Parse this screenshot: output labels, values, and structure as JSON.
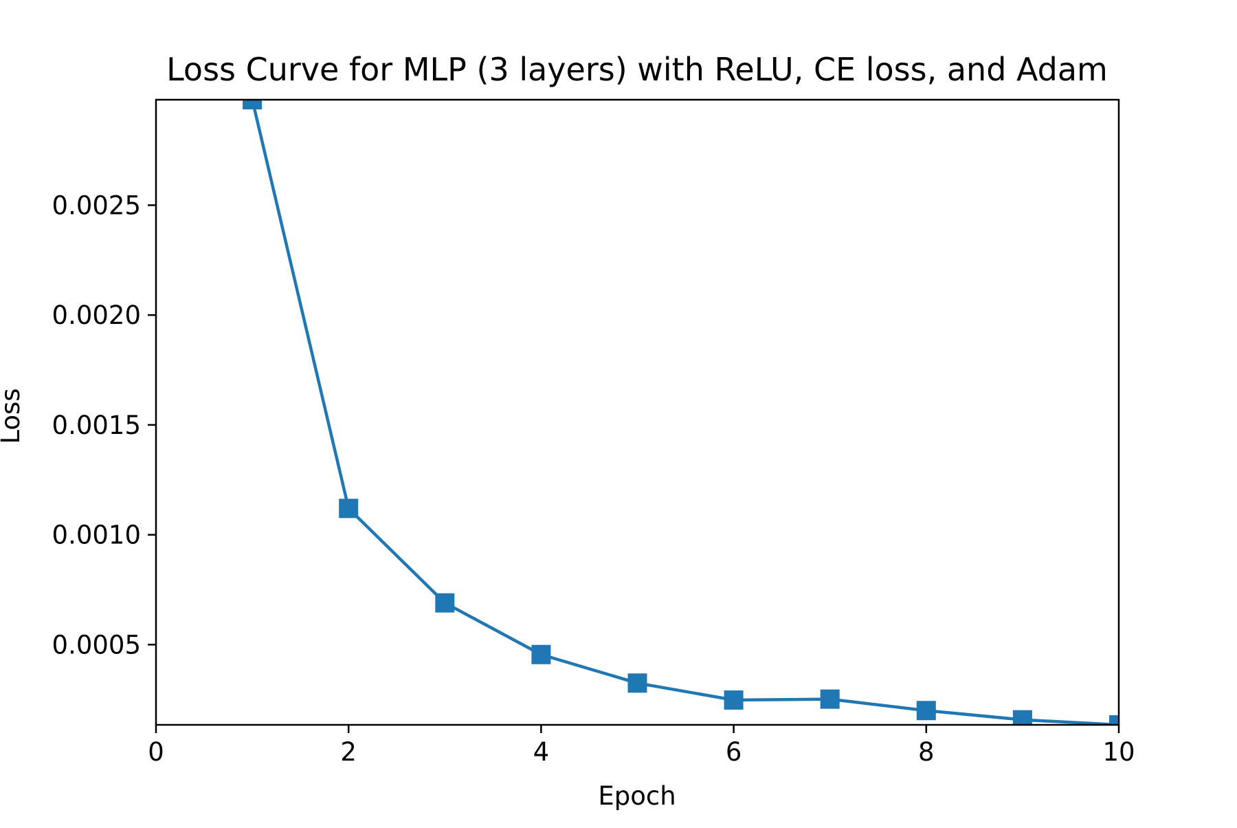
{
  "chart_data": {
    "type": "line",
    "title": "Loss Curve for MLP (3 layers) with ReLU, CE loss, and Adam",
    "xlabel": "Epoch",
    "ylabel": "Loss",
    "xlim": [
      0,
      10
    ],
    "ylim": [
      0.000135,
      0.00298
    ],
    "xticks": [
      0,
      2,
      4,
      6,
      8,
      10
    ],
    "xtick_labels": [
      "0",
      "2",
      "4",
      "6",
      "8",
      "10"
    ],
    "yticks": [
      0.0005,
      0.001,
      0.0015,
      0.002,
      0.0025
    ],
    "ytick_labels": [
      "0.0005",
      "0.0010",
      "0.0015",
      "0.0020",
      "0.0025"
    ],
    "grid": false,
    "legend": "none",
    "series": [
      {
        "color": "#1f77b4",
        "marker": "square",
        "x": [
          1,
          2,
          3,
          4,
          5,
          6,
          7,
          8,
          9,
          10
        ],
        "y": [
          0.00298,
          0.00112,
          0.00069,
          0.000455,
          0.000325,
          0.000248,
          0.000252,
          0.0002,
          0.000158,
          0.000135
        ]
      }
    ]
  }
}
